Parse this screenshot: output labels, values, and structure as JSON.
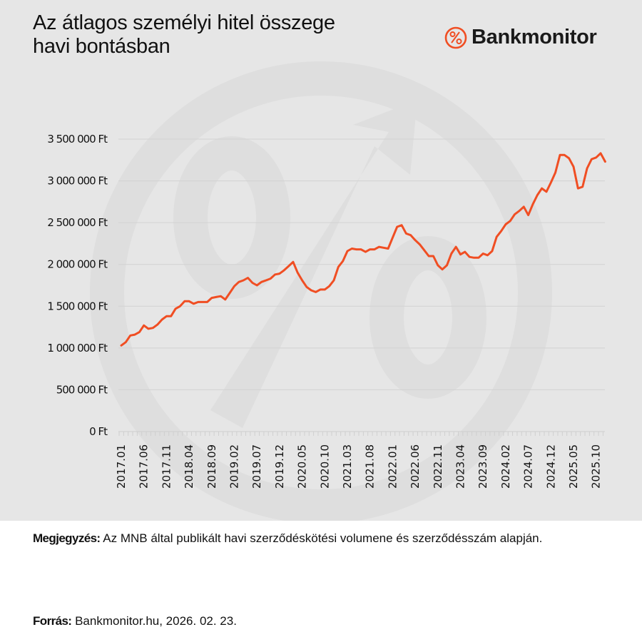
{
  "header": {
    "title_line1": "Az átlagos személyi hitel összege",
    "title_line2": "havi bontásban",
    "brand": {
      "name": "Bankmonitor",
      "icon": "percent-circle-icon",
      "accent": "#f04e23"
    }
  },
  "footer": {
    "note_label": "Megjegyzés:",
    "note_text": " Az MNB által publikált havi szerződéskötési volumene és szerződésszám alapján.",
    "source_label": "Forrás:",
    "source_text": " Bankmonitor.hu, 2026. 02. 23."
  },
  "colors": {
    "line": "#f04e23",
    "panel_bg": "#e6e6e6",
    "grid": "#d2d2d2",
    "watermark": "#dedede"
  },
  "chart_data": {
    "type": "line",
    "title": "Az átlagos személyi hitel összege havi bontásban",
    "xlabel": "",
    "ylabel": "",
    "ylim": [
      0,
      3500000
    ],
    "y_ticks": [
      0,
      500000,
      1000000,
      1500000,
      2000000,
      2500000,
      3000000,
      3500000
    ],
    "y_tick_labels": [
      "0 Ft",
      "500 000 Ft",
      "1 000 000 Ft",
      "1 500 000 Ft",
      "2 000 000 Ft",
      "2 500 000 Ft",
      "3 000 000 Ft",
      "3 500 000 Ft"
    ],
    "x_tick_labels": [
      "2017.01",
      "2017.06",
      "2017.11",
      "2018.04",
      "2018.09",
      "2019.02",
      "2019.07",
      "2019.12",
      "2020.05",
      "2020.10",
      "2021.03",
      "2021.08",
      "2022.01",
      "2022.06",
      "2022.11",
      "2023.04",
      "2023.09",
      "2024.02",
      "2024.07",
      "2024.12",
      "2025.05",
      "2025.10"
    ],
    "x_tick_step_months": 5,
    "x_start": "2017.01",
    "grid": true,
    "legend": false,
    "series": [
      {
        "name": "Átlagos személyi hitel összege (Ft)",
        "color": "#f04e23",
        "values": [
          1030000,
          1070000,
          1150000,
          1160000,
          1190000,
          1270000,
          1230000,
          1240000,
          1280000,
          1340000,
          1380000,
          1380000,
          1470000,
          1500000,
          1560000,
          1560000,
          1530000,
          1550000,
          1550000,
          1550000,
          1600000,
          1610000,
          1620000,
          1580000,
          1660000,
          1740000,
          1790000,
          1810000,
          1840000,
          1780000,
          1750000,
          1790000,
          1810000,
          1830000,
          1880000,
          1890000,
          1930000,
          1980000,
          2030000,
          1900000,
          1810000,
          1730000,
          1690000,
          1670000,
          1700000,
          1700000,
          1740000,
          1810000,
          1970000,
          2040000,
          2160000,
          2190000,
          2180000,
          2180000,
          2150000,
          2180000,
          2180000,
          2210000,
          2200000,
          2190000,
          2320000,
          2450000,
          2470000,
          2370000,
          2350000,
          2290000,
          2240000,
          2170000,
          2100000,
          2100000,
          1990000,
          1940000,
          1990000,
          2130000,
          2210000,
          2120000,
          2150000,
          2090000,
          2080000,
          2080000,
          2130000,
          2110000,
          2160000,
          2330000,
          2400000,
          2480000,
          2520000,
          2600000,
          2640000,
          2690000,
          2590000,
          2720000,
          2830000,
          2910000,
          2870000,
          2980000,
          3100000,
          3310000,
          3310000,
          3270000,
          3170000,
          2910000,
          2930000,
          3150000,
          3260000,
          3280000,
          3330000,
          3230000
        ]
      }
    ]
  }
}
